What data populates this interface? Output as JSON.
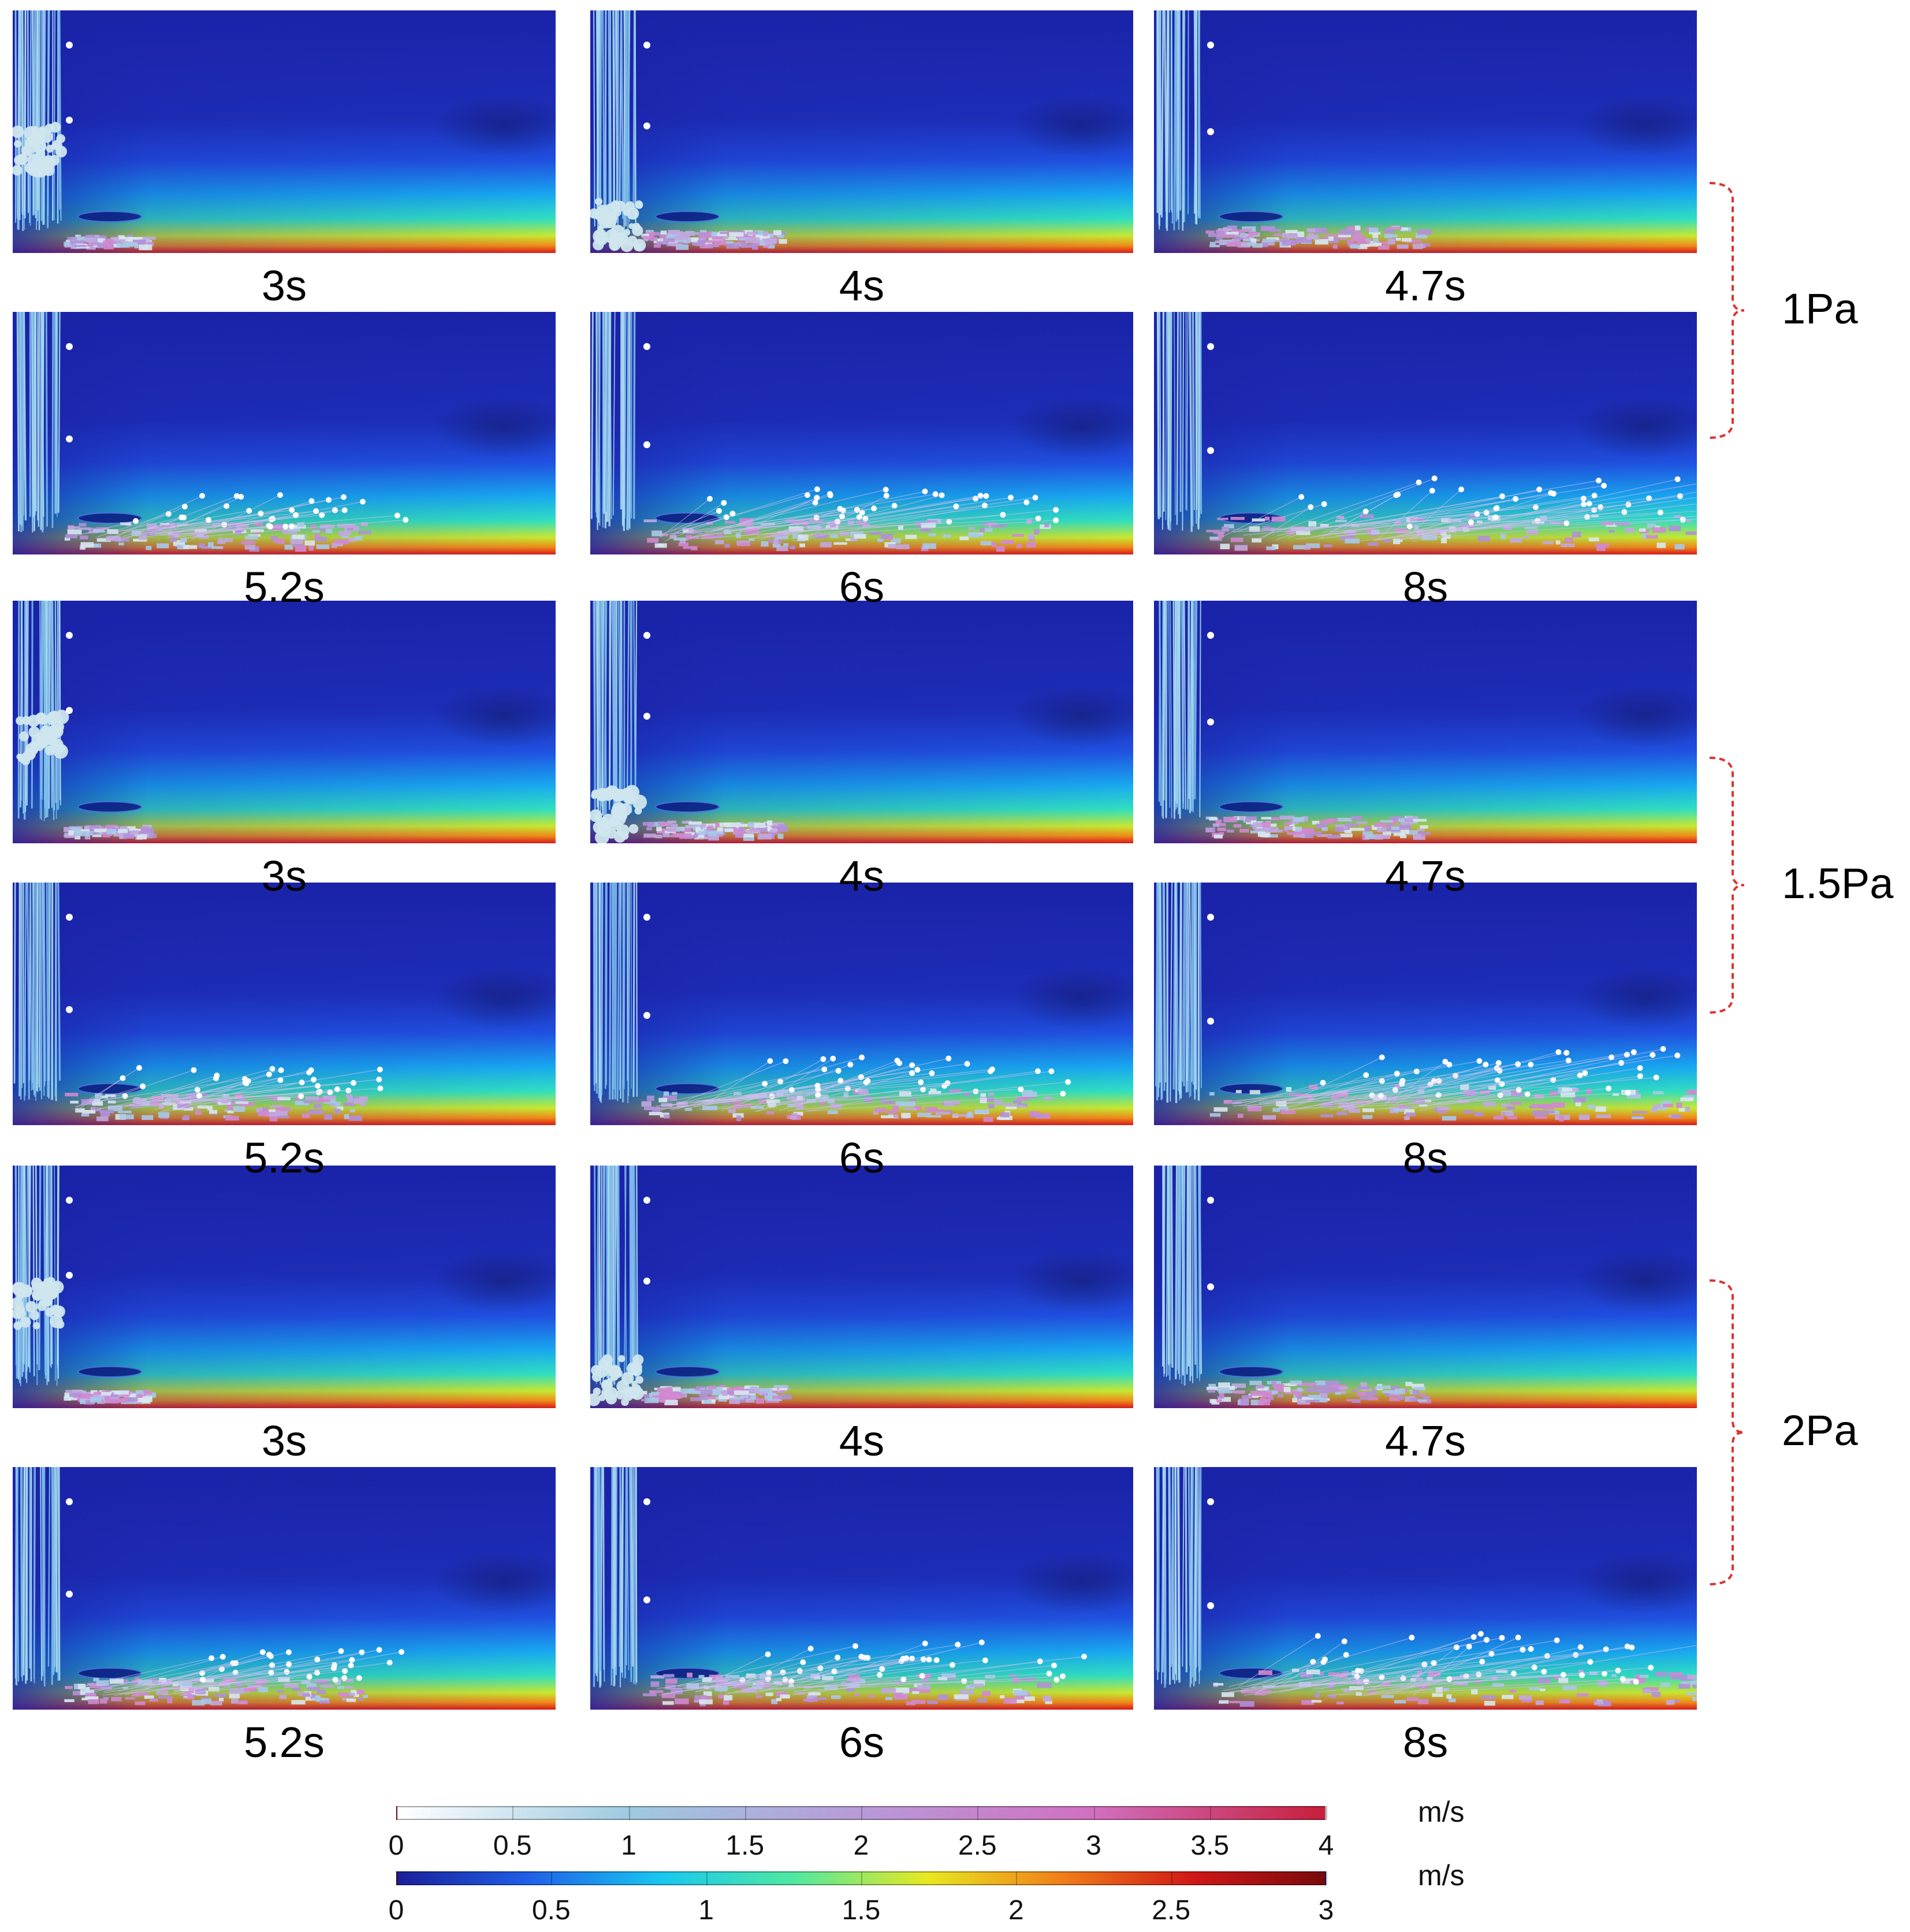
{
  "panels": [
    {
      "row": 0,
      "col": 0,
      "time": "3s",
      "stage": 1
    },
    {
      "row": 0,
      "col": 1,
      "time": "4s",
      "stage": 2
    },
    {
      "row": 0,
      "col": 2,
      "time": "4.7s",
      "stage": 3
    },
    {
      "row": 1,
      "col": 0,
      "time": "5.2s",
      "stage": 4
    },
    {
      "row": 1,
      "col": 1,
      "time": "6s",
      "stage": 5
    },
    {
      "row": 1,
      "col": 2,
      "time": "8s",
      "stage": 6
    },
    {
      "row": 2,
      "col": 0,
      "time": "3s",
      "stage": 1
    },
    {
      "row": 2,
      "col": 1,
      "time": "4s",
      "stage": 2
    },
    {
      "row": 2,
      "col": 2,
      "time": "4.7s",
      "stage": 3
    },
    {
      "row": 3,
      "col": 0,
      "time": "5.2s",
      "stage": 4
    },
    {
      "row": 3,
      "col": 1,
      "time": "6s",
      "stage": 5
    },
    {
      "row": 3,
      "col": 2,
      "time": "8s",
      "stage": 6
    },
    {
      "row": 4,
      "col": 0,
      "time": "3s",
      "stage": 1
    },
    {
      "row": 4,
      "col": 1,
      "time": "4s",
      "stage": 2
    },
    {
      "row": 4,
      "col": 2,
      "time": "4.7s",
      "stage": 3
    },
    {
      "row": 5,
      "col": 0,
      "time": "5.2s",
      "stage": 4
    },
    {
      "row": 5,
      "col": 1,
      "time": "6s",
      "stage": 5
    },
    {
      "row": 5,
      "col": 2,
      "time": "8s",
      "stage": 6
    }
  ],
  "groups": [
    {
      "label": "1Pa"
    },
    {
      "label": "1.5Pa"
    },
    {
      "label": "2Pa"
    }
  ],
  "colorbars": {
    "particle": {
      "unit": "m/s",
      "ticks": [
        "0",
        "0.5",
        "1",
        "1.5",
        "2",
        "2.5",
        "3",
        "3.5",
        "4"
      ],
      "colors": [
        "#ffffff",
        "#9ec9e0",
        "#b89ad8",
        "#d070c0",
        "#c81e3c"
      ]
    },
    "fluid": {
      "unit": "m/s",
      "ticks": [
        "0",
        "0.5",
        "1",
        "1.5",
        "2",
        "2.5",
        "3"
      ],
      "colors": [
        "#1a1f9a",
        "#2060e8",
        "#18c8f0",
        "#50e8a0",
        "#e8e820",
        "#f08018",
        "#d01818",
        "#7a0a0a"
      ]
    }
  }
}
